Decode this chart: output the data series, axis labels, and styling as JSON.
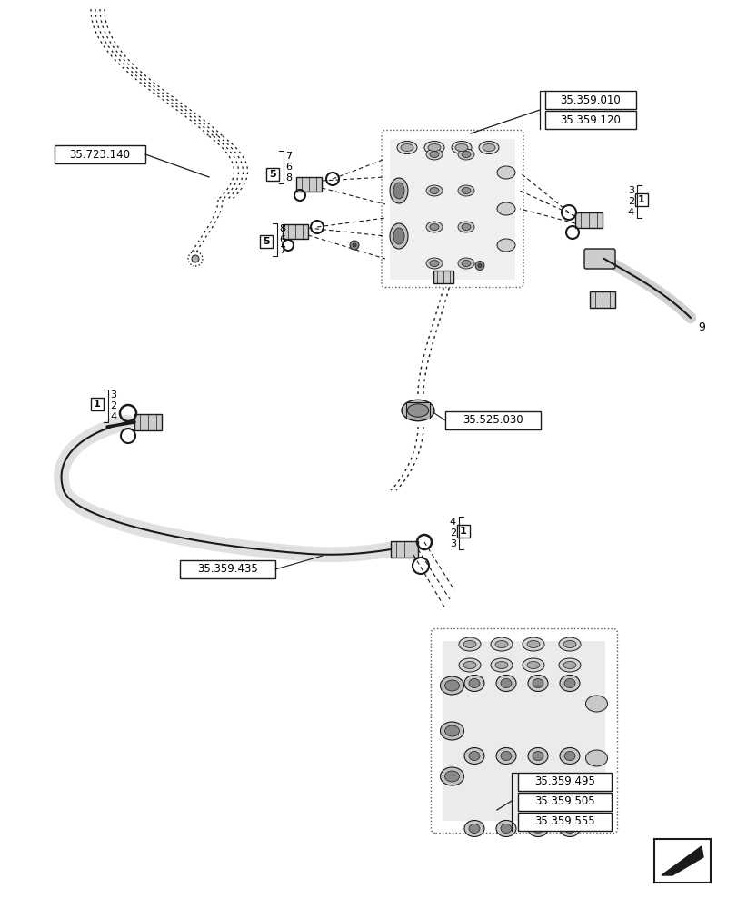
{
  "background_color": "#ffffff",
  "fig_width": 8.12,
  "fig_height": 10.0,
  "dpi": 100,
  "labels": {
    "top_right_box1": "35.359.010",
    "top_right_box2": "35.359.120",
    "left_mid_box": "35.723.140",
    "mid_center_box": "35.525.030",
    "mid_left_box1": "35.359.435",
    "bottom_right_box1": "35.359.495",
    "bottom_right_box2": "35.359.505",
    "bottom_right_box3": "35.359.555"
  },
  "label_9": "9",
  "line_color": "#1a1a1a",
  "text_color": "#000000",
  "gray_fill": "#888888",
  "light_gray": "#cccccc",
  "dark_gray": "#555555"
}
